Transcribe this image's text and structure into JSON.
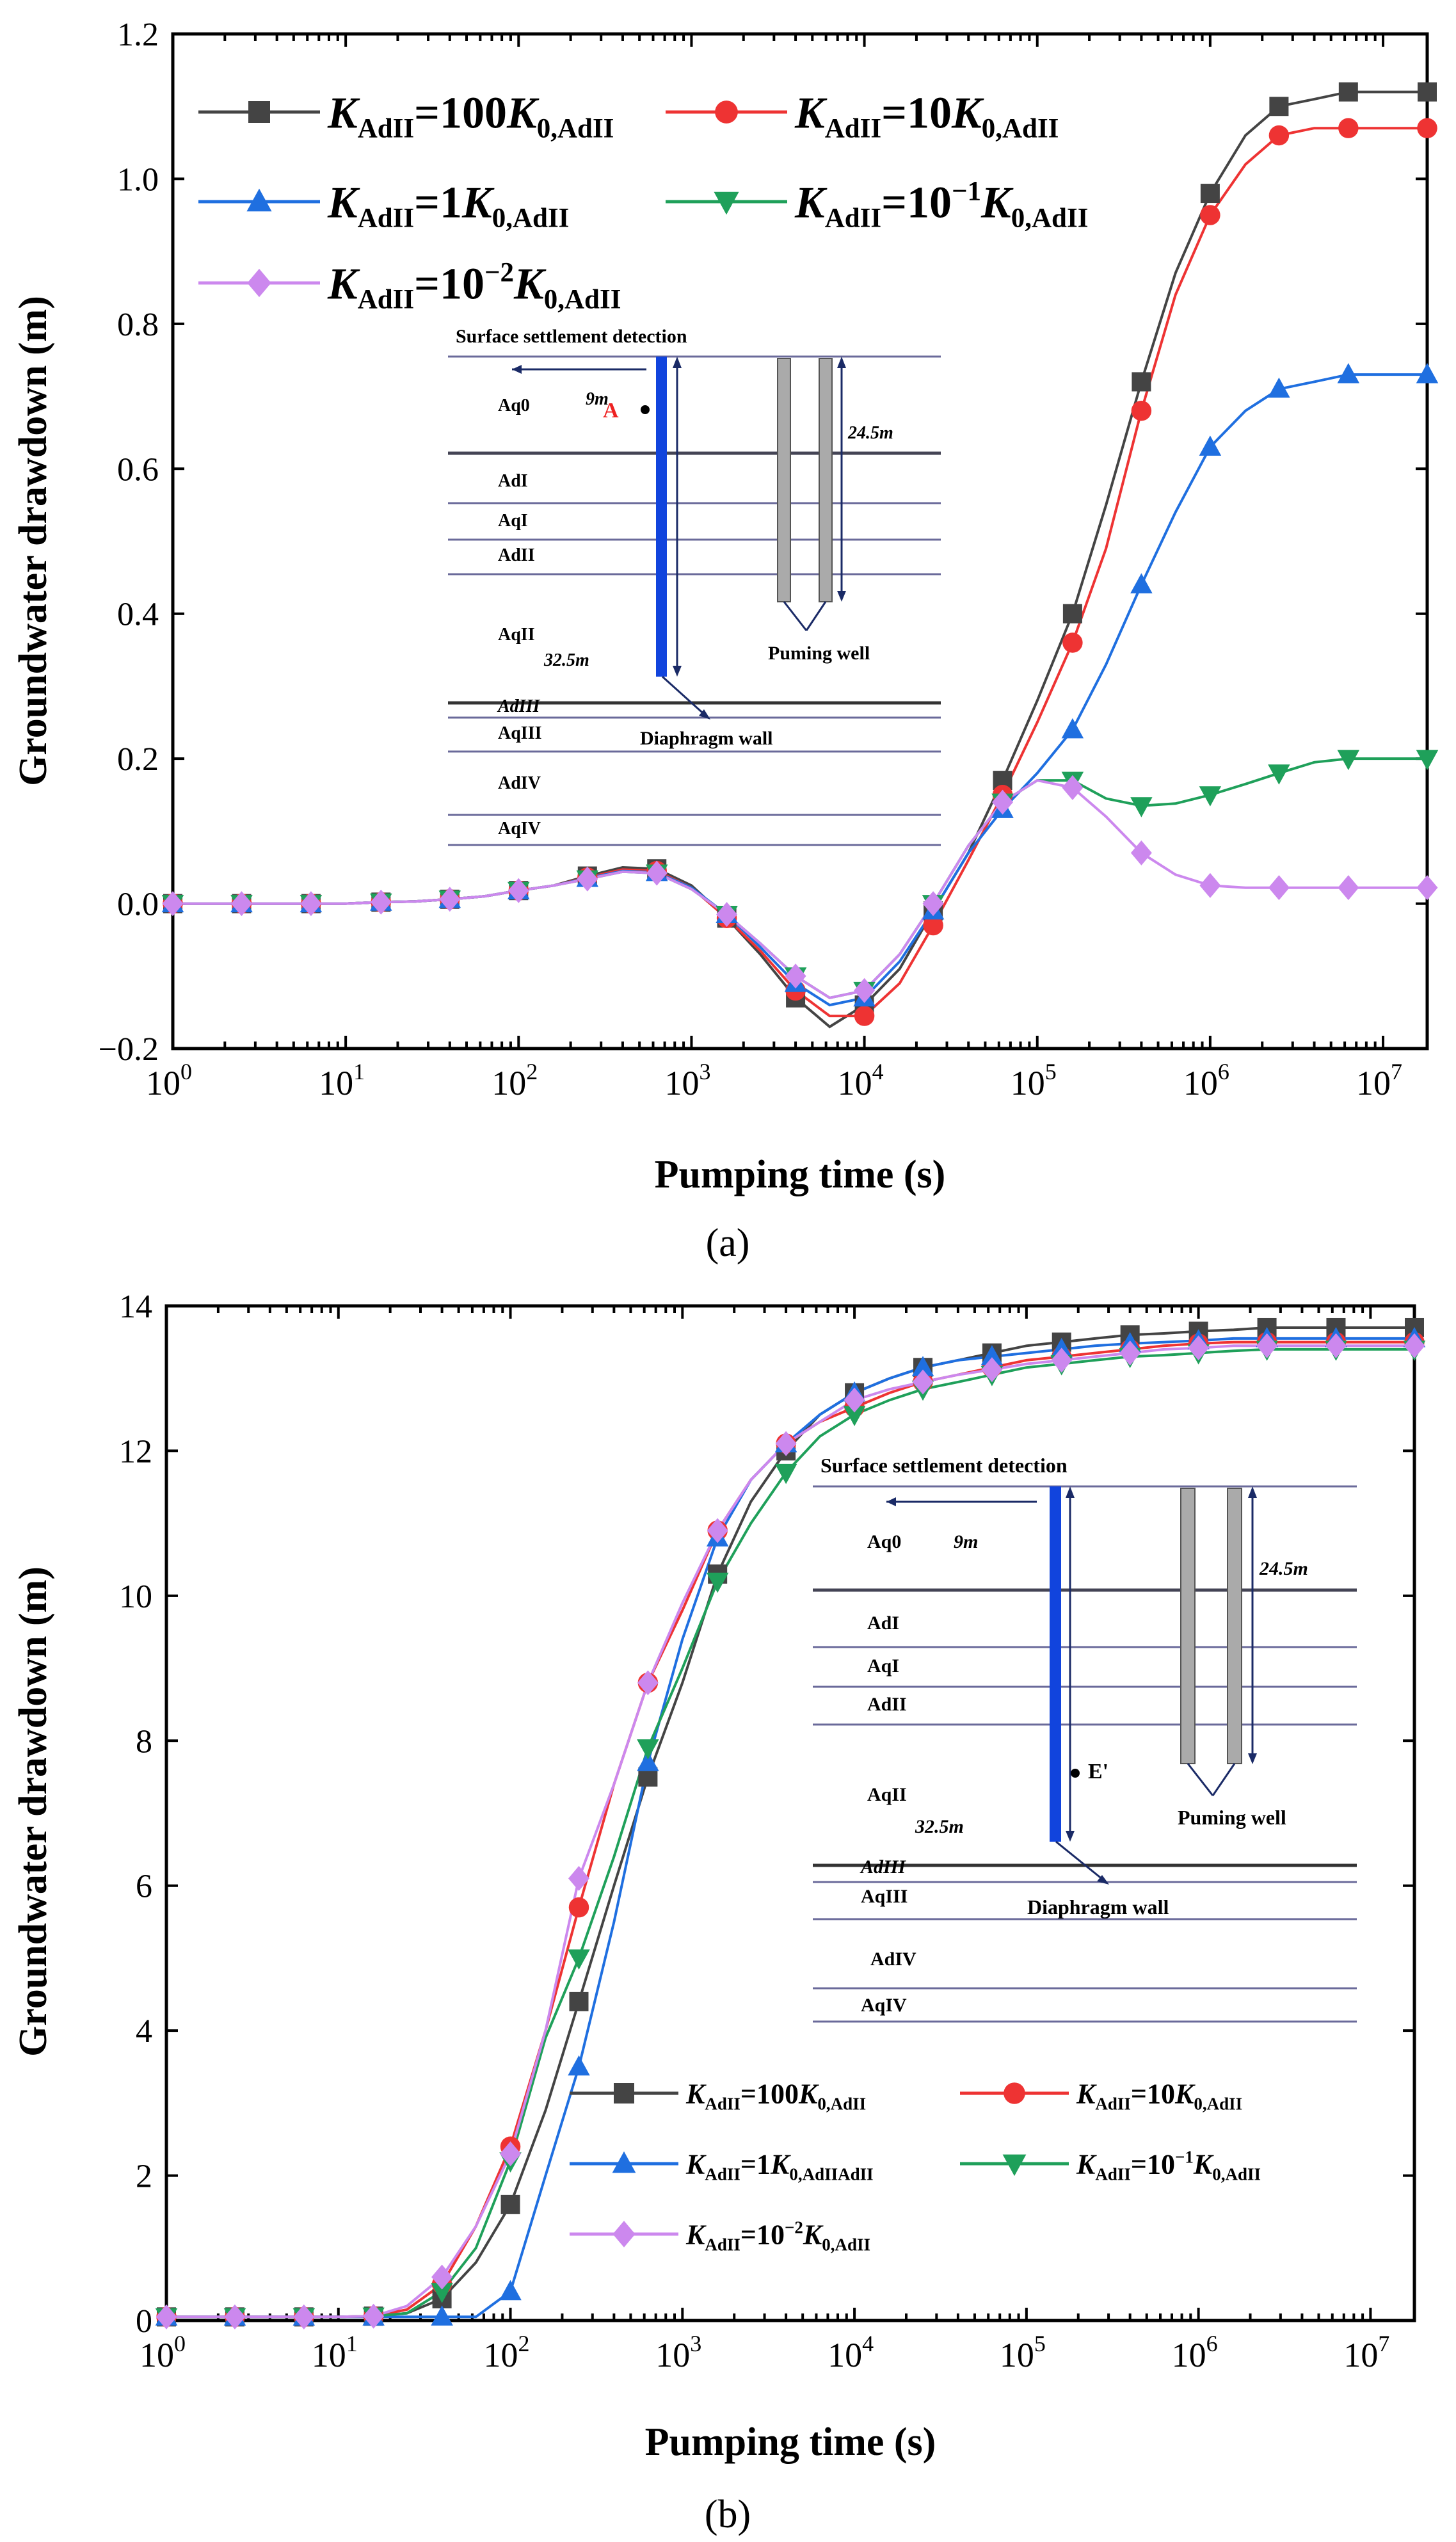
{
  "figure_labels": {
    "a": "(a)",
    "b": "(b)"
  },
  "colors": {
    "black": "#444444",
    "red": "#ee3333",
    "blue": "#1f6fe0",
    "green": "#1fa05a",
    "violet": "#cc88ee",
    "wall": "#1144dd",
    "well": "#aaaaaa",
    "axis": "#000000"
  },
  "legend_label_a": [
    {
      "base": "K",
      "sub": "AdII",
      "mid": "=100",
      "mid_sup": "",
      "k2": "K",
      "tail_sub": "0,AdII",
      "extra": ""
    },
    {
      "base": "K",
      "sub": "AdII",
      "mid": "=10",
      "mid_sup": "",
      "k2": "K",
      "tail_sub": "0,AdII",
      "extra": ""
    },
    {
      "base": "K",
      "sub": "AdII",
      "mid": "=1",
      "mid_sup": "",
      "k2": "K",
      "tail_sub": "0,AdII",
      "extra": ""
    },
    {
      "base": "K",
      "sub": "AdII",
      "mid": "=10",
      "mid_sup": "−1",
      "k2": "K",
      "tail_sub": "0,AdII",
      "extra": ""
    },
    {
      "base": "K",
      "sub": "AdII",
      "mid": "=10",
      "mid_sup": "−2",
      "k2": "K",
      "tail_sub": "0,AdII",
      "extra": ""
    }
  ],
  "legend_label_b": [
    {
      "base": "K",
      "sub": "AdII",
      "mid": "=100",
      "mid_sup": "",
      "k2": "K",
      "tail_sub": "0,AdII",
      "extra": ""
    },
    {
      "base": "K",
      "sub": "AdII",
      "mid": "=10",
      "mid_sup": "",
      "k2": "K",
      "tail_sub": "0,AdII",
      "extra": ""
    },
    {
      "base": "K",
      "sub": "AdII",
      "mid": "=1",
      "mid_sup": "",
      "k2": "K",
      "tail_sub": "0,AdII",
      "extra": "AdII"
    },
    {
      "base": "K",
      "sub": "AdII",
      "mid": "=10",
      "mid_sup": "−1",
      "k2": "K",
      "tail_sub": "0,AdII",
      "extra": ""
    },
    {
      "base": "K",
      "sub": "AdII",
      "mid": "=10",
      "mid_sup": "−2",
      "k2": "K",
      "tail_sub": "0,AdII",
      "extra": ""
    }
  ],
  "inset_a": {
    "title": "Surface settlement detection",
    "layers": [
      "Aq0",
      "AdI",
      "AqI",
      "AdII",
      "AqII",
      "AdIII",
      "AqIII",
      "AdIV",
      "AqIV"
    ],
    "dist_label": "9m",
    "point_label": "A",
    "depth_wall": "32.5m",
    "depth_well": "24.5m",
    "well_label": "Puming well",
    "wall_label": "Diaphragm wall"
  },
  "inset_b": {
    "title": "Surface settlement detection",
    "layers": [
      "Aq0",
      "AdI",
      "AqI",
      "AdII",
      "AqII",
      "AdIII",
      "AqIII",
      "AdIV",
      "AqIV"
    ],
    "dist_label": "9m",
    "point_label": "E'",
    "depth_wall": "32.5m",
    "depth_well": "24.5m",
    "well_label": "Puming well",
    "wall_label": "Diaphragm wall"
  },
  "chart_data": [
    {
      "type": "line",
      "title": "",
      "xlabel": "Pumping time (s)",
      "ylabel": "Groundwater drawdown (m)",
      "xscale": "log",
      "xlim": [
        1,
        18000000
      ],
      "ylim": [
        -0.2,
        1.2
      ],
      "grid": false,
      "legend_position": "top-left",
      "xtick_labels": [
        {
          "base": "10",
          "exp": "0"
        },
        {
          "base": "10",
          "exp": "1"
        },
        {
          "base": "10",
          "exp": "2"
        },
        {
          "base": "10",
          "exp": "3"
        },
        {
          "base": "10",
          "exp": "4"
        },
        {
          "base": "10",
          "exp": "5"
        },
        {
          "base": "10",
          "exp": "6"
        },
        {
          "base": "10",
          "exp": "7"
        }
      ],
      "yticks": [
        -0.2,
        0.0,
        0.2,
        0.4,
        0.6,
        0.8,
        1.0,
        1.2
      ],
      "ytick_labels": [
        "−0.2",
        "0.0",
        "0.2",
        "0.4",
        "0.6",
        "0.8",
        "1.0",
        "1.2"
      ],
      "x": [
        1,
        1.6,
        2.5,
        4,
        6.3,
        10,
        16,
        25,
        40,
        63,
        100,
        160,
        250,
        400,
        630,
        1000,
        1600,
        2500,
        4000,
        6300,
        10000,
        16000,
        25000,
        40000,
        63000,
        100000,
        160000,
        250000,
        400000,
        630000,
        1000000,
        1600000,
        2500000,
        4000000,
        6300000,
        10000000,
        18000000
      ],
      "marker_every": 2,
      "series": [
        {
          "name": "K_AdII=100K_0,AdII",
          "color": "#444444",
          "marker": "square",
          "values": [
            0,
            0,
            0,
            0,
            0,
            0,
            0.002,
            0.003,
            0.006,
            0.01,
            0.018,
            0.025,
            0.038,
            0.05,
            0.048,
            0.025,
            -0.02,
            -0.07,
            -0.13,
            -0.17,
            -0.14,
            -0.09,
            -0.01,
            0.07,
            0.17,
            0.28,
            0.4,
            0.55,
            0.72,
            0.87,
            0.98,
            1.06,
            1.1,
            1.11,
            1.12,
            1.12,
            1.12
          ]
        },
        {
          "name": "K_AdII=10K_0,AdII",
          "color": "#ee3333",
          "marker": "circle",
          "values": [
            0,
            0,
            0,
            0,
            0,
            0,
            0.002,
            0.003,
            0.006,
            0.01,
            0.018,
            0.025,
            0.036,
            0.047,
            0.045,
            0.022,
            -0.02,
            -0.065,
            -0.12,
            -0.155,
            -0.155,
            -0.11,
            -0.03,
            0.06,
            0.15,
            0.25,
            0.36,
            0.49,
            0.68,
            0.84,
            0.95,
            1.02,
            1.06,
            1.07,
            1.07,
            1.07,
            1.07
          ]
        },
        {
          "name": "K_AdII=1K_0,AdII",
          "color": "#1f6fe0",
          "marker": "triangle-up",
          "values": [
            0,
            0,
            0,
            0,
            0,
            0,
            0.002,
            0.003,
            0.006,
            0.01,
            0.018,
            0.025,
            0.035,
            0.045,
            0.043,
            0.022,
            -0.015,
            -0.06,
            -0.11,
            -0.14,
            -0.13,
            -0.08,
            -0.01,
            0.07,
            0.13,
            0.18,
            0.24,
            0.33,
            0.44,
            0.54,
            0.63,
            0.68,
            0.71,
            0.72,
            0.73,
            0.73,
            0.73
          ]
        },
        {
          "name": "K_AdII=10^-1K_0,AdII",
          "color": "#1fa05a",
          "marker": "triangle-down",
          "values": [
            0,
            0,
            0,
            0,
            0,
            0,
            0.002,
            0.003,
            0.006,
            0.01,
            0.018,
            0.025,
            0.034,
            0.044,
            0.042,
            0.02,
            -0.015,
            -0.055,
            -0.1,
            -0.13,
            -0.12,
            -0.07,
            0,
            0.08,
            0.14,
            0.17,
            0.17,
            0.145,
            0.135,
            0.138,
            0.15,
            0.165,
            0.18,
            0.195,
            0.2,
            0.2,
            0.2
          ]
        },
        {
          "name": "K_AdII=10^-2K_0,AdII",
          "color": "#cc88ee",
          "marker": "diamond",
          "values": [
            0,
            0,
            0,
            0,
            0,
            0,
            0.002,
            0.003,
            0.006,
            0.01,
            0.018,
            0.025,
            0.034,
            0.044,
            0.042,
            0.02,
            -0.015,
            -0.055,
            -0.1,
            -0.13,
            -0.12,
            -0.07,
            0,
            0.08,
            0.14,
            0.17,
            0.16,
            0.12,
            0.07,
            0.04,
            0.025,
            0.022,
            0.022,
            0.022,
            0.022,
            0.022,
            0.022
          ]
        }
      ]
    },
    {
      "type": "line",
      "title": "",
      "xlabel": "Pumping time (s)",
      "ylabel": "Groundwater drawdown (m)",
      "xscale": "log",
      "xlim": [
        1,
        18000000
      ],
      "ylim": [
        0,
        14
      ],
      "grid": false,
      "legend_position": "bottom-center",
      "xtick_labels": [
        {
          "base": "10",
          "exp": "0"
        },
        {
          "base": "10",
          "exp": "1"
        },
        {
          "base": "10",
          "exp": "2"
        },
        {
          "base": "10",
          "exp": "3"
        },
        {
          "base": "10",
          "exp": "4"
        },
        {
          "base": "10",
          "exp": "5"
        },
        {
          "base": "10",
          "exp": "6"
        },
        {
          "base": "10",
          "exp": "7"
        }
      ],
      "yticks": [
        0,
        2,
        4,
        6,
        8,
        10,
        12,
        14
      ],
      "ytick_labels": [
        "0",
        "2",
        "4",
        "6",
        "8",
        "10",
        "12",
        "14"
      ],
      "x": [
        1,
        1.6,
        2.5,
        4,
        6.3,
        10,
        16,
        25,
        40,
        63,
        100,
        160,
        250,
        400,
        630,
        1000,
        1600,
        2500,
        4000,
        6300,
        10000,
        16000,
        25000,
        40000,
        63000,
        100000,
        160000,
        250000,
        400000,
        630000,
        1000000,
        1600000,
        2500000,
        4000000,
        6300000,
        10000000,
        18000000
      ],
      "marker_every": 2,
      "series": [
        {
          "name": "K_AdII=100K_0,AdII",
          "color": "#444444",
          "marker": "square",
          "values": [
            0.05,
            0.05,
            0.05,
            0.05,
            0.05,
            0.05,
            0.06,
            0.1,
            0.3,
            0.8,
            1.6,
            2.9,
            4.4,
            6.0,
            7.5,
            8.8,
            10.3,
            11.3,
            12.0,
            12.5,
            12.8,
            13.0,
            13.15,
            13.25,
            13.35,
            13.45,
            13.5,
            13.55,
            13.6,
            13.62,
            13.65,
            13.67,
            13.7,
            13.7,
            13.7,
            13.7,
            13.7
          ]
        },
        {
          "name": "K_AdII=10K_0,AdII",
          "color": "#ee3333",
          "marker": "circle",
          "values": [
            0.05,
            0.05,
            0.05,
            0.05,
            0.05,
            0.05,
            0.06,
            0.15,
            0.5,
            1.3,
            2.4,
            4.0,
            5.7,
            7.4,
            8.8,
            9.8,
            10.9,
            11.6,
            12.1,
            12.4,
            12.6,
            12.8,
            12.95,
            13.05,
            13.15,
            13.25,
            13.3,
            13.35,
            13.4,
            13.45,
            13.48,
            13.5,
            13.5,
            13.5,
            13.5,
            13.5,
            13.5
          ]
        },
        {
          "name": "K_AdII=1K_0,AdII",
          "color": "#1f6fe0",
          "marker": "triangle-up",
          "values": [
            0.05,
            0.05,
            0.05,
            0.05,
            0.05,
            0.05,
            0.05,
            0.05,
            0.05,
            0.05,
            0.4,
            2.0,
            3.5,
            5.5,
            7.7,
            9.4,
            10.8,
            11.6,
            12.1,
            12.5,
            12.8,
            13.0,
            13.15,
            13.25,
            13.3,
            13.35,
            13.4,
            13.45,
            13.48,
            13.5,
            13.52,
            13.55,
            13.55,
            13.55,
            13.55,
            13.55,
            13.55
          ]
        },
        {
          "name": "K_AdII=10^-1K_0,AdII",
          "color": "#1fa05a",
          "marker": "triangle-down",
          "values": [
            0.05,
            0.05,
            0.05,
            0.05,
            0.05,
            0.05,
            0.06,
            0.1,
            0.4,
            1.0,
            2.2,
            3.9,
            5.0,
            6.4,
            7.9,
            9.0,
            10.2,
            11.0,
            11.7,
            12.2,
            12.5,
            12.7,
            12.85,
            12.95,
            13.05,
            13.15,
            13.2,
            13.25,
            13.3,
            13.32,
            13.35,
            13.38,
            13.4,
            13.4,
            13.4,
            13.4,
            13.4
          ]
        },
        {
          "name": "K_AdII=10^-2K_0,AdII",
          "color": "#cc88ee",
          "marker": "diamond",
          "values": [
            0.05,
            0.05,
            0.05,
            0.05,
            0.05,
            0.05,
            0.06,
            0.2,
            0.6,
            1.3,
            2.3,
            4.0,
            6.1,
            7.4,
            8.8,
            9.9,
            10.9,
            11.6,
            12.1,
            12.4,
            12.7,
            12.85,
            12.95,
            13.05,
            13.12,
            13.2,
            13.25,
            13.3,
            13.35,
            13.4,
            13.42,
            13.45,
            13.45,
            13.45,
            13.45,
            13.45,
            13.45
          ]
        }
      ]
    }
  ]
}
